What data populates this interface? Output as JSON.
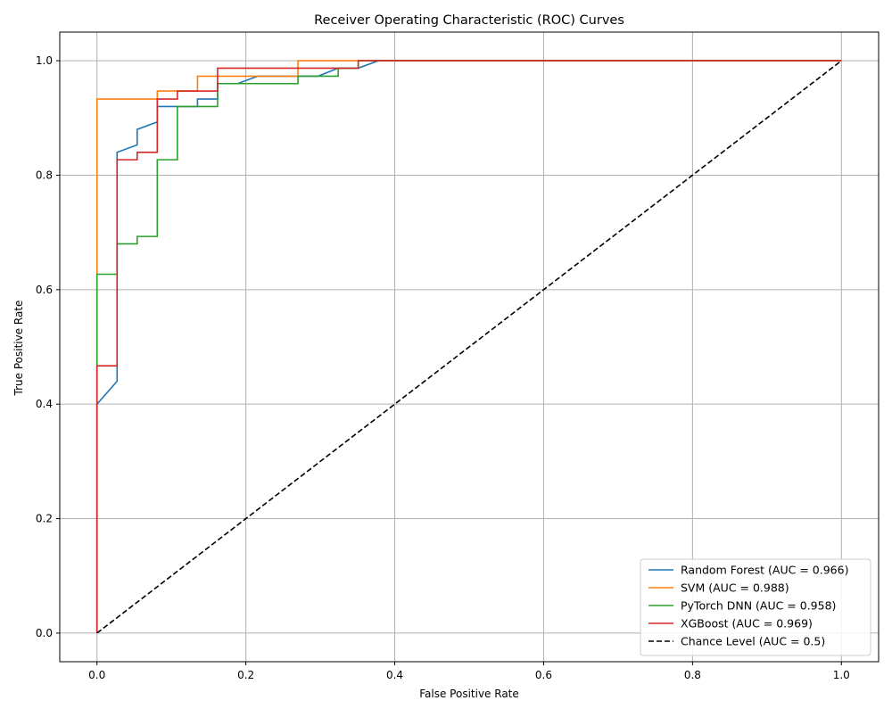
{
  "chart_data": {
    "type": "line",
    "title": "Receiver Operating Characteristic (ROC) Curves",
    "xlabel": "False Positive Rate",
    "ylabel": "True Positive Rate",
    "xlim": [
      -0.05,
      1.05
    ],
    "ylim": [
      -0.05,
      1.05
    ],
    "xticks": [
      "0.0",
      "0.2",
      "0.4",
      "0.6",
      "0.8",
      "1.0"
    ],
    "yticks": [
      "0.0",
      "0.2",
      "0.4",
      "0.6",
      "0.8",
      "1.0"
    ],
    "grid": true,
    "legend_position": "lower-right",
    "series": [
      {
        "name": "Random Forest (AUC = 0.966)",
        "color": "#1f77b4",
        "dash": false,
        "points": [
          [
            0,
            0
          ],
          [
            0,
            0.4
          ],
          [
            0.027,
            0.44
          ],
          [
            0.027,
            0.84
          ],
          [
            0.054,
            0.853
          ],
          [
            0.054,
            0.88
          ],
          [
            0.081,
            0.893
          ],
          [
            0.081,
            0.92
          ],
          [
            0.135,
            0.92
          ],
          [
            0.135,
            0.933
          ],
          [
            0.162,
            0.933
          ],
          [
            0.162,
            0.96
          ],
          [
            0.189,
            0.96
          ],
          [
            0.216,
            0.973
          ],
          [
            0.297,
            0.973
          ],
          [
            0.324,
            0.987
          ],
          [
            0.351,
            0.987
          ],
          [
            0.378,
            1.0
          ],
          [
            1.0,
            1.0
          ]
        ]
      },
      {
        "name": "SVM (AUC = 0.988)",
        "color": "#ff7f0e",
        "dash": false,
        "points": [
          [
            0,
            0
          ],
          [
            0,
            0.933
          ],
          [
            0.081,
            0.933
          ],
          [
            0.081,
            0.947
          ],
          [
            0.135,
            0.947
          ],
          [
            0.135,
            0.973
          ],
          [
            0.27,
            0.973
          ],
          [
            0.27,
            1.0
          ],
          [
            1.0,
            1.0
          ]
        ]
      },
      {
        "name": "PyTorch DNN (AUC = 0.958)",
        "color": "#2ca02c",
        "dash": false,
        "points": [
          [
            0,
            0
          ],
          [
            0,
            0.627
          ],
          [
            0.027,
            0.627
          ],
          [
            0.027,
            0.68
          ],
          [
            0.054,
            0.68
          ],
          [
            0.054,
            0.693
          ],
          [
            0.081,
            0.693
          ],
          [
            0.081,
            0.827
          ],
          [
            0.108,
            0.827
          ],
          [
            0.108,
            0.92
          ],
          [
            0.162,
            0.92
          ],
          [
            0.162,
            0.96
          ],
          [
            0.27,
            0.96
          ],
          [
            0.27,
            0.973
          ],
          [
            0.324,
            0.973
          ],
          [
            0.324,
            0.987
          ],
          [
            0.351,
            0.987
          ],
          [
            0.351,
            1.0
          ],
          [
            1.0,
            1.0
          ]
        ]
      },
      {
        "name": "XGBoost (AUC = 0.969)",
        "color": "#d62728",
        "dash": false,
        "points": [
          [
            0,
            0
          ],
          [
            0,
            0.467
          ],
          [
            0.027,
            0.467
          ],
          [
            0.027,
            0.827
          ],
          [
            0.054,
            0.827
          ],
          [
            0.054,
            0.84
          ],
          [
            0.081,
            0.84
          ],
          [
            0.081,
            0.933
          ],
          [
            0.108,
            0.933
          ],
          [
            0.108,
            0.947
          ],
          [
            0.162,
            0.947
          ],
          [
            0.162,
            0.987
          ],
          [
            0.351,
            0.987
          ],
          [
            0.351,
            1.0
          ],
          [
            1.0,
            1.0
          ]
        ]
      },
      {
        "name": "Chance Level (AUC = 0.5)",
        "color": "#000000",
        "dash": true,
        "points": [
          [
            0,
            0
          ],
          [
            1,
            1
          ]
        ]
      }
    ]
  }
}
